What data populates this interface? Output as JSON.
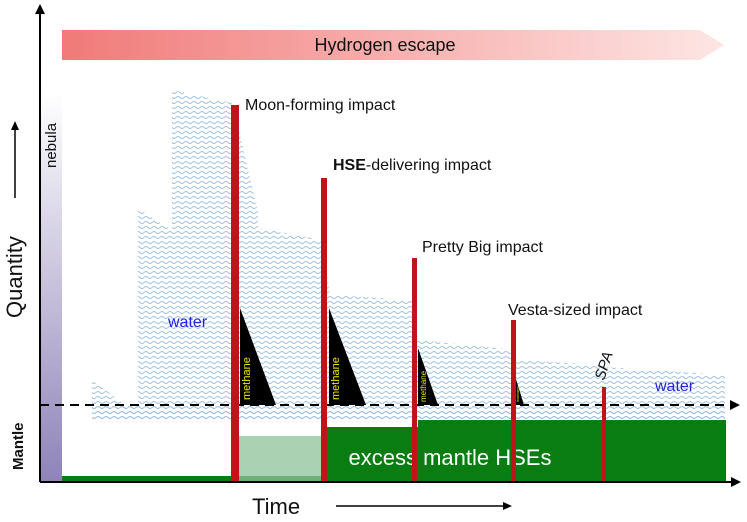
{
  "diagram": {
    "banner": {
      "label": "Hydrogen escape",
      "color": "#f08a86"
    },
    "nebula_label": "nebula",
    "y_axis_label": "Quantity",
    "x_axis_label": "Time",
    "mantle_label": "Mantle",
    "water_label_left": "water",
    "water_label_right": "water",
    "excess_label": "excess mantle HSEs",
    "methane_label": "methane",
    "impacts": [
      {
        "label_plain": "Moon-forming impact"
      },
      {
        "label_bold": "HSE",
        "label_rest": "-delivering impact"
      },
      {
        "label_plain": "Pretty Big impact"
      },
      {
        "label_plain": "Vesta-sized impact"
      },
      {
        "label_plain": "SPA"
      }
    ],
    "colors": {
      "impact": "#c0141a",
      "mantle_green": "#0a7d12",
      "water_text": "#2222dd",
      "methane_text": "#f2e600",
      "water_hatch": "#9fbfe0"
    }
  }
}
